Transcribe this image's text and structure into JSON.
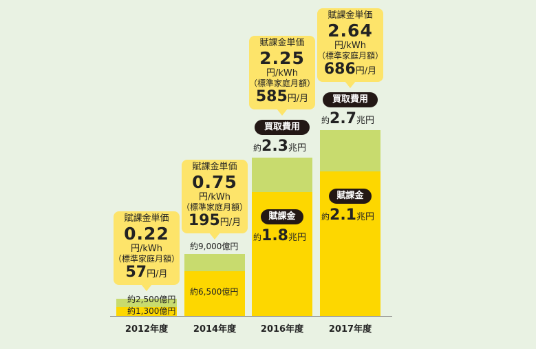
{
  "chart_data": {
    "type": "bar",
    "categories": [
      "2012年度",
      "2014年度",
      "2016年度",
      "2017年度"
    ],
    "series": [
      {
        "name": "賦課金",
        "values": [
          1300,
          6500,
          18000,
          21000
        ]
      },
      {
        "name": "買取費用",
        "values": [
          2500,
          9000,
          23000,
          27000
        ]
      }
    ],
    "unit_note": "億円",
    "bar_labels": {
      "total": [
        {
          "prefix": "約",
          "big": "",
          "unit": "2,500億円"
        },
        {
          "prefix": "約",
          "big": "",
          "unit": "9,000億円"
        },
        {
          "prefix": "約",
          "big": "2.3",
          "unit": "兆円"
        },
        {
          "prefix": "約",
          "big": "2.7",
          "unit": "兆円"
        }
      ],
      "levy": [
        {
          "prefix": "約",
          "big": "",
          "unit": "1,300億円"
        },
        {
          "prefix": "約",
          "big": "",
          "unit": "6,500億円"
        },
        {
          "prefix": "約",
          "big": "1.8",
          "unit": "兆円"
        },
        {
          "prefix": "約",
          "big": "2.1",
          "unit": "兆円"
        }
      ]
    },
    "pill_labels": {
      "total": "買取費用",
      "levy": "賦課金"
    },
    "callouts": [
      {
        "label": "賦課金単価",
        "price": "0.22",
        "unit": "円/kWh",
        "sub": "（標準家庭月額）",
        "monthly": "57",
        "monthly_unit": "円/月"
      },
      {
        "label": "賦課金単価",
        "price": "0.75",
        "unit": "円/kWh",
        "sub": "（標準家庭月額）",
        "monthly": "195",
        "monthly_unit": "円/月"
      },
      {
        "label": "賦課金単価",
        "price": "2.25",
        "unit": "円/kWh",
        "sub": "（標準家庭月額）",
        "monthly": "585",
        "monthly_unit": "円/月"
      },
      {
        "label": "賦課金単価",
        "price": "2.64",
        "unit": "円/kWh",
        "sub": "（標準家庭月額）",
        "monthly": "686",
        "monthly_unit": "円/月"
      }
    ],
    "colors": {
      "total": "#c8db6e",
      "levy": "#fdd700",
      "callout": "#fde46a",
      "pill": "#231815",
      "background": "#e9f2e3"
    }
  }
}
